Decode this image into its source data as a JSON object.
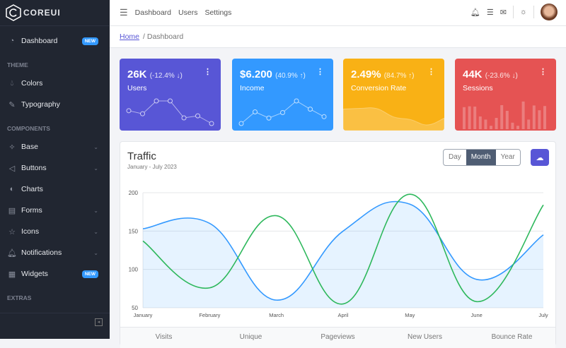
{
  "brand": "COREUI",
  "sidebar": {
    "dashboard": {
      "label": "Dashboard",
      "badge": "NEW"
    },
    "theme_title": "THEME",
    "theme": [
      {
        "label": "Colors",
        "icon": "drop-icon"
      },
      {
        "label": "Typography",
        "icon": "pencil-icon"
      }
    ],
    "components_title": "COMPONENTS",
    "components": [
      {
        "label": "Base",
        "icon": "puzzle-icon",
        "chevron": true
      },
      {
        "label": "Buttons",
        "icon": "cursor-icon",
        "chevron": true
      },
      {
        "label": "Charts",
        "icon": "chart-pie-icon",
        "chevron": false
      },
      {
        "label": "Forms",
        "icon": "notes-icon",
        "chevron": true
      },
      {
        "label": "Icons",
        "icon": "star-icon",
        "chevron": true
      },
      {
        "label": "Notifications",
        "icon": "bell-icon",
        "chevron": true
      },
      {
        "label": "Widgets",
        "icon": "calculator-icon",
        "badge": "NEW"
      }
    ],
    "extras_title": "EXTRAS"
  },
  "header": {
    "nav": [
      "Dashboard",
      "Users",
      "Settings"
    ]
  },
  "breadcrumb": {
    "home": "Home",
    "current": "Dashboard"
  },
  "widgets": [
    {
      "value": "26K",
      "change": "(-12.4% ↓)",
      "label": "Users",
      "color": "#5856d6",
      "type": "line",
      "data": [
        65,
        59,
        84,
        84,
        51,
        55,
        40
      ]
    },
    {
      "value": "$6.200",
      "change": "(40.9% ↑)",
      "label": "Income",
      "color": "#3399ff",
      "type": "line",
      "data": [
        1,
        18,
        9,
        17,
        34,
        22,
        11
      ]
    },
    {
      "value": "2.49%",
      "change": "(84.7% ↑)",
      "label": "Conversion Rate",
      "color": "#f9b115",
      "type": "area",
      "data": [
        78,
        81,
        80,
        45,
        34,
        12,
        40
      ]
    },
    {
      "value": "44K",
      "change": "(-23.6% ↓)",
      "label": "Sessions",
      "color": "#e55353",
      "type": "bar",
      "data": [
        78,
        81,
        80,
        45,
        34,
        12,
        40,
        85,
        65,
        23,
        12,
        98,
        34,
        84,
        67,
        82
      ]
    }
  ],
  "traffic": {
    "title": "Traffic",
    "subtitle": "January - July 2023",
    "periods": [
      "Day",
      "Month",
      "Year"
    ],
    "active_period": "Month",
    "footer": [
      "Visits",
      "Unique",
      "Pageviews",
      "New Users",
      "Bounce Rate"
    ]
  },
  "chart_data": {
    "type": "line",
    "categories": [
      "January",
      "February",
      "March",
      "April",
      "May",
      "June",
      "July"
    ],
    "ylim": [
      50,
      200
    ],
    "yticks": [
      50,
      100,
      150,
      200
    ],
    "grid": true,
    "series": [
      {
        "values": [
          153,
          160,
          60,
          150,
          185,
          87,
          145
        ],
        "color": "#3399ff",
        "fill": true
      },
      {
        "values": [
          137,
          76,
          170,
          55,
          198,
          58,
          184
        ],
        "color": "#2eb85c",
        "fill": false
      }
    ]
  }
}
